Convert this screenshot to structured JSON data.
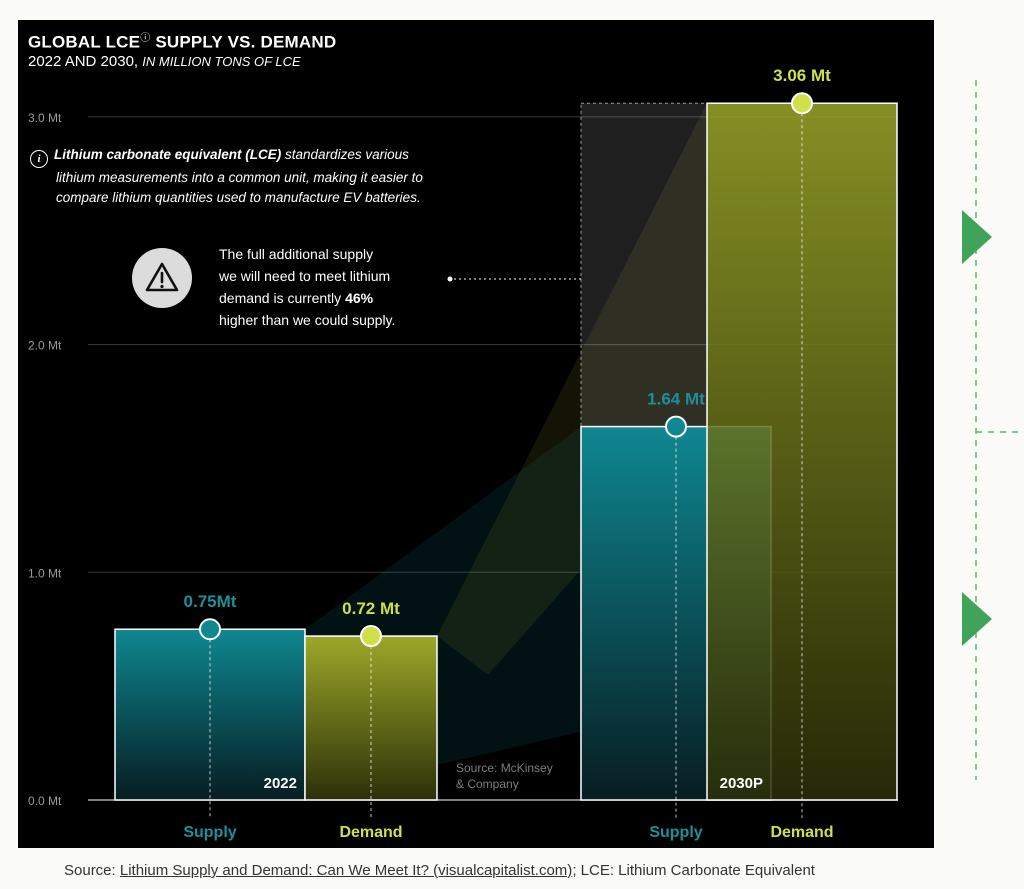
{
  "title": {
    "main": "GLOBAL LCE",
    "sup": "ⓘ",
    "rest": " SUPPLY VS. DEMAND"
  },
  "subtitle": {
    "years": "2022 AND 2030,",
    "units": "IN MILLION TONS OF LCE"
  },
  "info": {
    "icon": "i",
    "lead": "Lithium carbonate equivalent (LCE)",
    "text1": " standardizes various",
    "text2": "lithium measurements into a common unit, making it easier to",
    "text3": "compare lithium quantities used to manufacture EV batteries."
  },
  "callout": {
    "line1": "The full additional supply",
    "line2": "we will need to meet lithium",
    "line3_pre": "demand is currently ",
    "line3_bold": "46%",
    "line4": "higher than we could supply."
  },
  "source_inner": {
    "line1": "Source: McKinsey",
    "line2": "& Company"
  },
  "footer": {
    "prefix": "Source: ",
    "link": "Lithium Supply and Demand: Can We Meet It? (visualcapitalist.com)",
    "suffix": "; LCE: Lithium Carbonate Equivalent"
  },
  "colors": {
    "supply": "#0f8791",
    "demand": "#9da82a",
    "supply_label": "#1e8f9a",
    "demand_label": "#cfe04a",
    "background": "#000000",
    "accent_green": "#3fa35a"
  },
  "chart_data": {
    "type": "bar",
    "categories": [
      "2022",
      "2030P"
    ],
    "series": [
      {
        "name": "Supply",
        "values": [
          0.75,
          1.64
        ],
        "labels": [
          "0.75Mt",
          "1.64 Mt"
        ]
      },
      {
        "name": "Demand",
        "values": [
          0.72,
          3.06
        ],
        "labels": [
          "0.72 Mt",
          "3.06 Mt"
        ]
      }
    ],
    "ylim": [
      0,
      3.0
    ],
    "yticks": [
      0,
      1.0,
      2.0,
      3.0
    ],
    "ytick_labels": [
      "0.0 Mt",
      "1.0 Mt",
      "2.0 Mt",
      "3.0 Mt"
    ],
    "xlabels": [
      "Supply",
      "Demand",
      "Supply",
      "Demand"
    ],
    "grid": true
  }
}
